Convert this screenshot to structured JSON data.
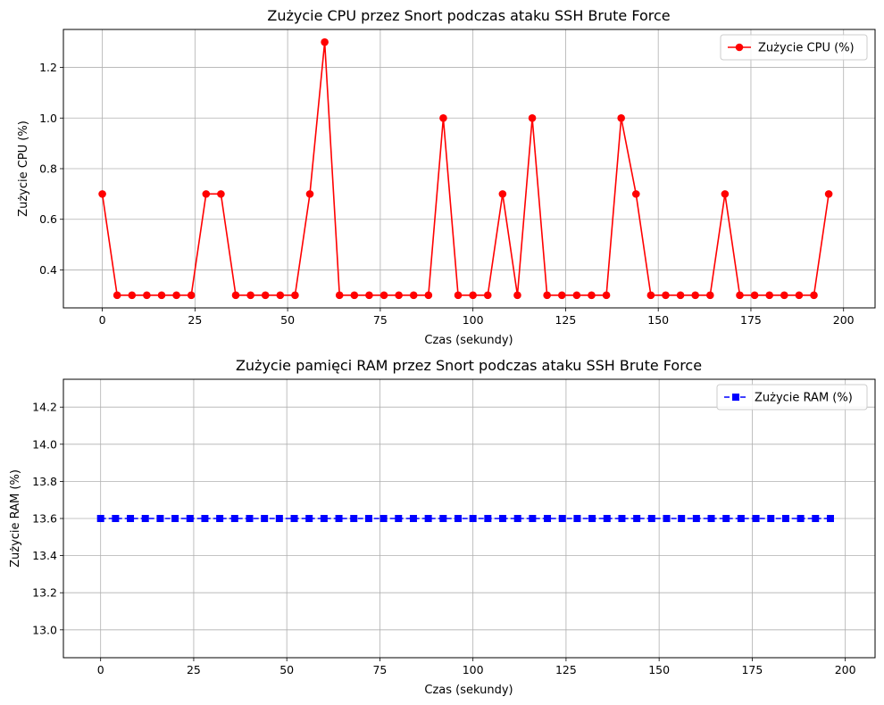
{
  "chart_data": [
    {
      "type": "line",
      "title": "Zużycie CPU przez Snort podczas ataku SSH Brute Force",
      "xlabel": "Czas (sekundy)",
      "ylabel": "Zużycie CPU (%)",
      "xlim": [
        -10.5,
        208.5
      ],
      "ylim": [
        0.25,
        1.35
      ],
      "xticks": [
        0,
        25,
        50,
        75,
        100,
        125,
        150,
        175,
        200
      ],
      "yticks": [
        0.4,
        0.6,
        0.8,
        1.0,
        1.2
      ],
      "ytick_labels": [
        "0.4",
        "0.6",
        "0.8",
        "1.0",
        "1.2"
      ],
      "grid": true,
      "legend_position": "top-right",
      "series": [
        {
          "name": "Zużycie CPU (%)",
          "color": "#ff0000",
          "marker": "circle",
          "line_style": "solid",
          "x": [
            0,
            4,
            8,
            12,
            16,
            20,
            24,
            28,
            32,
            36,
            40,
            44,
            48,
            52,
            56,
            60,
            64,
            68,
            72,
            76,
            80,
            84,
            88,
            92,
            96,
            100,
            104,
            108,
            112,
            116,
            120,
            124,
            128,
            132,
            136,
            140,
            144,
            148,
            152,
            156,
            160,
            164,
            168,
            172,
            176,
            180,
            184,
            188,
            192,
            196
          ],
          "y": [
            0.7,
            0.3,
            0.3,
            0.3,
            0.3,
            0.3,
            0.3,
            0.7,
            0.7,
            0.3,
            0.3,
            0.3,
            0.3,
            0.3,
            0.7,
            1.3,
            0.3,
            0.3,
            0.3,
            0.3,
            0.3,
            0.3,
            0.3,
            1.0,
            0.3,
            0.3,
            0.3,
            0.7,
            0.3,
            1.0,
            0.3,
            0.3,
            0.3,
            0.3,
            0.3,
            1.0,
            0.7,
            0.3,
            0.3,
            0.3,
            0.3,
            0.3,
            0.7,
            0.3,
            0.3,
            0.3,
            0.3,
            0.3,
            0.3,
            0.7
          ]
        }
      ]
    },
    {
      "type": "line",
      "title": "Zużycie pamięci RAM przez Snort podczas ataku SSH Brute Force",
      "xlabel": "Czas (sekundy)",
      "ylabel": "Zużycie RAM (%)",
      "xlim": [
        -10,
        208
      ],
      "ylim": [
        12.85,
        14.35
      ],
      "xticks": [
        0,
        25,
        50,
        75,
        100,
        125,
        150,
        175,
        200
      ],
      "yticks": [
        13.0,
        13.2,
        13.4,
        13.6,
        13.8,
        14.0,
        14.2
      ],
      "ytick_labels": [
        "13.0",
        "13.2",
        "13.4",
        "13.6",
        "13.8",
        "14.0",
        "14.2"
      ],
      "grid": true,
      "legend_position": "top-right",
      "series": [
        {
          "name": "Zużycie RAM (%)",
          "color": "#0000ff",
          "marker": "square",
          "line_style": "dashed",
          "x": [
            0,
            4,
            8,
            12,
            16,
            20,
            24,
            28,
            32,
            36,
            40,
            44,
            48,
            52,
            56,
            60,
            64,
            68,
            72,
            76,
            80,
            84,
            88,
            92,
            96,
            100,
            104,
            108,
            112,
            116,
            120,
            124,
            128,
            132,
            136,
            140,
            144,
            148,
            152,
            156,
            160,
            164,
            168,
            172,
            176,
            180,
            184,
            188,
            192,
            196
          ],
          "y": [
            13.6,
            13.6,
            13.6,
            13.6,
            13.6,
            13.6,
            13.6,
            13.6,
            13.6,
            13.6,
            13.6,
            13.6,
            13.6,
            13.6,
            13.6,
            13.6,
            13.6,
            13.6,
            13.6,
            13.6,
            13.6,
            13.6,
            13.6,
            13.6,
            13.6,
            13.6,
            13.6,
            13.6,
            13.6,
            13.6,
            13.6,
            13.6,
            13.6,
            13.6,
            13.6,
            13.6,
            13.6,
            13.6,
            13.6,
            13.6,
            13.6,
            13.6,
            13.6,
            13.6,
            13.6,
            13.6,
            13.6,
            13.6,
            13.6,
            13.6
          ]
        }
      ]
    }
  ]
}
